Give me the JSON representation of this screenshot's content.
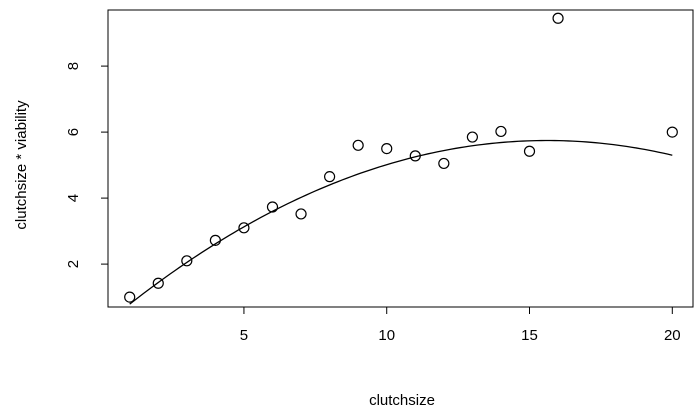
{
  "chart_data": {
    "type": "scatter",
    "title": "",
    "xlabel": "clutchsize",
    "ylabel": "clutchsize * viability",
    "xlim": [
      0.24,
      20.76
    ],
    "ylim": [
      0.7,
      9.7
    ],
    "grid": false,
    "legend": "none",
    "x_ticks": [
      5,
      10,
      15,
      20
    ],
    "y_ticks": [
      2,
      4,
      6,
      8
    ],
    "points": [
      {
        "x": 1,
        "y": 1.0
      },
      {
        "x": 2,
        "y": 1.42
      },
      {
        "x": 3,
        "y": 2.1
      },
      {
        "x": 4,
        "y": 2.72
      },
      {
        "x": 5,
        "y": 3.1
      },
      {
        "x": 6,
        "y": 3.73
      },
      {
        "x": 7,
        "y": 3.52
      },
      {
        "x": 8,
        "y": 4.65
      },
      {
        "x": 9,
        "y": 5.6
      },
      {
        "x": 10,
        "y": 5.5
      },
      {
        "x": 11,
        "y": 5.28
      },
      {
        "x": 12,
        "y": 5.05
      },
      {
        "x": 13,
        "y": 5.85
      },
      {
        "x": 14,
        "y": 6.02
      },
      {
        "x": 15,
        "y": 5.42
      },
      {
        "x": 16,
        "y": 9.45
      },
      {
        "x": 20,
        "y": 6.0
      }
    ],
    "fit_curve": {
      "type": "quadratic",
      "x_range": [
        1,
        20
      ],
      "coefficients": {
        "a": -0.0232,
        "b": 0.7247,
        "c": 0.0856
      }
    },
    "colors": {
      "points": "#000000",
      "line": "#000000",
      "background": "#ffffff"
    }
  }
}
